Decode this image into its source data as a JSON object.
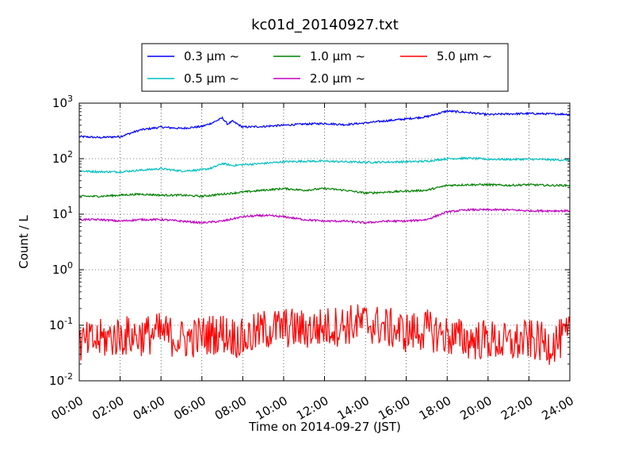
{
  "chart_data": {
    "type": "line",
    "title": "kc01d_20140927.txt",
    "xlabel": "Time on 2014-09-27 (JST)",
    "ylabel": "Count / L",
    "y_scale": "log",
    "ylim": [
      0.01,
      1000
    ],
    "xlim": [
      "00:00",
      "24:00"
    ],
    "grid": true,
    "legend_position": "top-center",
    "x_ticks": [
      "00:00",
      "02:00",
      "04:00",
      "06:00",
      "08:00",
      "10:00",
      "12:00",
      "14:00",
      "16:00",
      "18:00",
      "20:00",
      "22:00",
      "24:00"
    ],
    "y_ticks": [
      {
        "base": "10",
        "exp": "-2"
      },
      {
        "base": "10",
        "exp": "-1"
      },
      {
        "base": "10",
        "exp": "0"
      },
      {
        "base": "10",
        "exp": "1"
      },
      {
        "base": "10",
        "exp": "2"
      },
      {
        "base": "10",
        "exp": "3"
      }
    ],
    "series": [
      {
        "name": "0.3 μm ~",
        "color": "#0000ff",
        "x": [
          "00:00",
          "01:00",
          "02:00",
          "03:00",
          "04:00",
          "05:00",
          "06:00",
          "06:30",
          "07:00",
          "07:15",
          "07:30",
          "08:00",
          "09:00",
          "10:00",
          "11:00",
          "12:00",
          "13:00",
          "14:00",
          "15:00",
          "16:00",
          "17:00",
          "18:00",
          "19:00",
          "20:00",
          "21:00",
          "22:00",
          "23:00",
          "24:00"
        ],
        "values": [
          250,
          240,
          250,
          330,
          370,
          350,
          380,
          440,
          540,
          420,
          470,
          370,
          380,
          400,
          420,
          430,
          410,
          440,
          480,
          520,
          570,
          720,
          680,
          620,
          640,
          650,
          640,
          630
        ]
      },
      {
        "name": "0.5 μm ~",
        "color": "#00bfbf",
        "x": [
          "00:00",
          "01:00",
          "02:00",
          "03:00",
          "04:00",
          "05:00",
          "06:00",
          "06:30",
          "07:00",
          "07:30",
          "08:00",
          "09:00",
          "10:00",
          "11:00",
          "12:00",
          "13:00",
          "14:00",
          "15:00",
          "16:00",
          "17:00",
          "18:00",
          "19:00",
          "20:00",
          "21:00",
          "22:00",
          "23:00",
          "24:00"
        ],
        "values": [
          60,
          58,
          58,
          62,
          66,
          60,
          63,
          68,
          82,
          75,
          78,
          82,
          88,
          90,
          90,
          88,
          86,
          87,
          88,
          90,
          100,
          102,
          98,
          97,
          98,
          96,
          94
        ]
      },
      {
        "name": "1.0 μm ~",
        "color": "#008000",
        "x": [
          "00:00",
          "01:00",
          "02:00",
          "03:00",
          "04:00",
          "05:00",
          "06:00",
          "07:00",
          "08:00",
          "09:00",
          "10:00",
          "11:00",
          "12:00",
          "13:00",
          "14:00",
          "15:00",
          "16:00",
          "17:00",
          "18:00",
          "19:00",
          "20:00",
          "21:00",
          "22:00",
          "23:00",
          "24:00"
        ],
        "values": [
          21,
          21,
          22,
          23,
          22,
          22,
          21,
          23,
          25,
          27,
          29,
          27,
          29,
          27,
          24,
          25,
          26,
          27,
          33,
          34,
          34,
          33,
          34,
          33,
          33
        ]
      },
      {
        "name": "2.0 μm ~",
        "color": "#bf00bf",
        "x": [
          "00:00",
          "01:00",
          "02:00",
          "03:00",
          "04:00",
          "05:00",
          "06:00",
          "07:00",
          "08:00",
          "09:00",
          "10:00",
          "11:00",
          "12:00",
          "13:00",
          "14:00",
          "15:00",
          "16:00",
          "17:00",
          "18:00",
          "19:00",
          "20:00",
          "21:00",
          "22:00",
          "23:00",
          "24:00"
        ],
        "values": [
          8,
          8,
          7.5,
          8,
          8,
          7.5,
          7,
          7.5,
          9,
          9.5,
          9,
          8,
          7.5,
          7.5,
          7,
          7.5,
          7.5,
          8,
          11,
          12,
          12,
          12,
          11.5,
          11.5,
          11.5
        ]
      },
      {
        "name": "2.0 μm ~",
        "color": "#bf00bf",
        "hidden": true,
        "x": [],
        "values": []
      },
      {
        "name": "5.0 μm ~",
        "color": "#ff0000",
        "x": [
          "00:00",
          "01:00",
          "02:00",
          "03:00",
          "04:00",
          "05:00",
          "06:00",
          "07:00",
          "08:00",
          "09:00",
          "10:00",
          "11:00",
          "12:00",
          "13:00",
          "14:00",
          "15:00",
          "16:00",
          "17:00",
          "18:00",
          "19:00",
          "20:00",
          "21:00",
          "22:00",
          "23:00",
          "24:00"
        ],
        "values": [
          0.05,
          0.06,
          0.07,
          0.07,
          0.08,
          0.06,
          0.07,
          0.08,
          0.06,
          0.09,
          0.1,
          0.09,
          0.1,
          0.11,
          0.12,
          0.1,
          0.08,
          0.09,
          0.07,
          0.06,
          0.06,
          0.05,
          0.06,
          0.05,
          0.07
        ]
      }
    ]
  }
}
